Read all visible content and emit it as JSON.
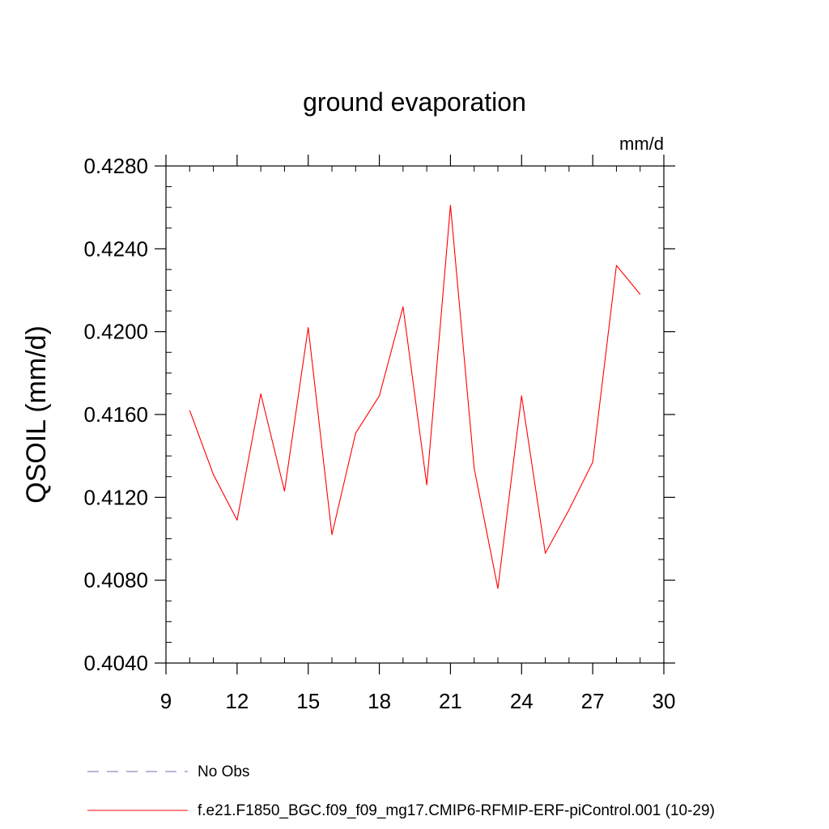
{
  "chart_data": {
    "type": "line",
    "title": "ground evaporation",
    "units_label": "mm/d",
    "ylabel": "QSOIL  (mm/d)",
    "xlabel": "",
    "xlim": [
      9,
      30
    ],
    "ylim": [
      0.404,
      0.428
    ],
    "x_ticks": [
      9,
      12,
      15,
      18,
      21,
      24,
      27,
      30
    ],
    "x_tick_labels": [
      "9",
      "12",
      "15",
      "18",
      "21",
      "24",
      "27",
      "30"
    ],
    "y_ticks": [
      0.404,
      0.408,
      0.412,
      0.416,
      0.42,
      0.424,
      0.428
    ],
    "y_tick_labels": [
      "0.4040",
      "0.4080",
      "0.4120",
      "0.4160",
      "0.4200",
      "0.4240",
      "0.4280"
    ],
    "x_minor_step": 1,
    "y_minor_step": 0.001,
    "grid": false,
    "legend_position": "bottom",
    "series": [
      {
        "name": "f.e21.F1850_BGC.f09_f09_mg17.CMIP6-RFMIP-ERF-piControl.001 (10-29)",
        "color": "#ff0000",
        "style": "solid",
        "x": [
          10,
          11,
          12,
          13,
          14,
          15,
          16,
          17,
          18,
          19,
          20,
          21,
          22,
          23,
          24,
          25,
          26,
          27,
          28,
          29
        ],
        "y": [
          0.4162,
          0.4131,
          0.4109,
          0.417,
          0.4123,
          0.4202,
          0.4102,
          0.4151,
          0.4169,
          0.4212,
          0.4126,
          0.4261,
          0.4134,
          0.4076,
          0.4169,
          0.4093,
          0.4114,
          0.4137,
          0.4232,
          0.4218
        ]
      }
    ],
    "legend": [
      {
        "label": "No Obs",
        "color": "#7b68b0",
        "style": "dashed"
      },
      {
        "label": "f.e21.F1850_BGC.f09_f09_mg17.CMIP6-RFMIP-ERF-piControl.001 (10-29)",
        "color": "#ff0000",
        "style": "solid"
      }
    ]
  }
}
